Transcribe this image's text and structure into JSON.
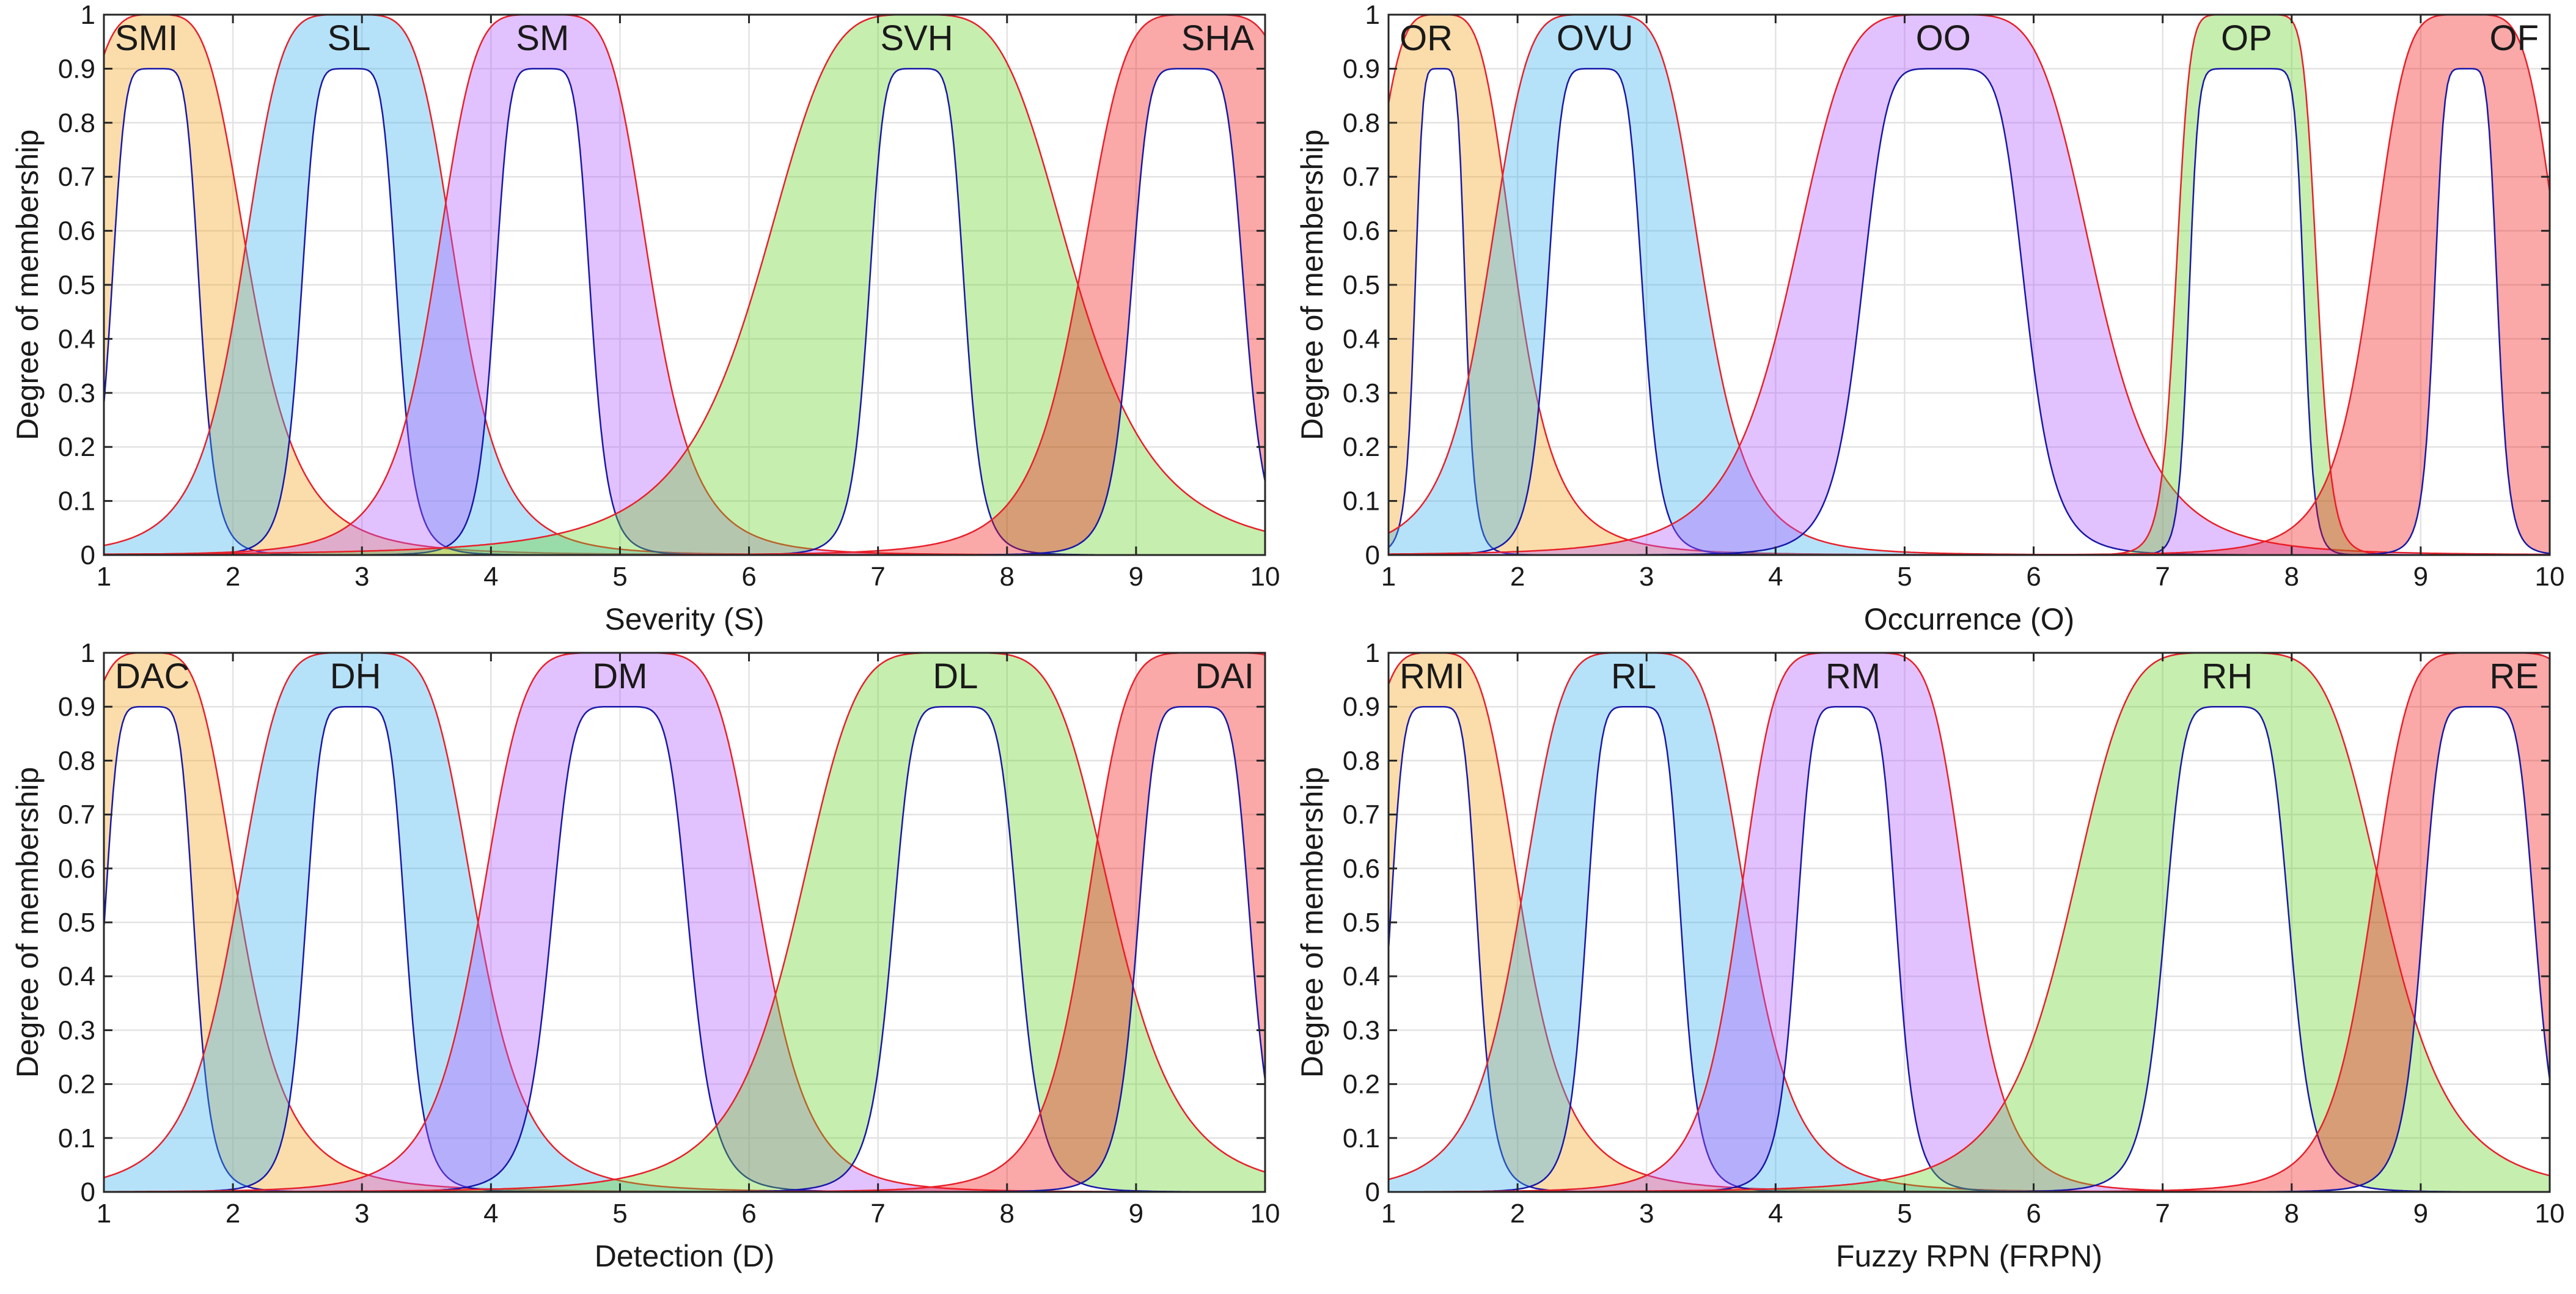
{
  "figure": {
    "ylabel": "Degree of membership",
    "colors": {
      "set1": "#f5a623",
      "set2": "#3fb3f0",
      "set3": "#b45cff",
      "set4": "#6ad12a",
      "set5": "#f21b1b",
      "upper_stroke": "#e8202a",
      "lower_stroke": "#1818a8",
      "grid": "#e3e3e3"
    }
  },
  "chart_data": [
    {
      "type": "area",
      "title": "",
      "xlabel": "Severity (S)",
      "ylabel": "Degree of membership",
      "xlim": [
        1,
        10
      ],
      "ylim": [
        0,
        1
      ],
      "xticks": [
        "1",
        "2",
        "3",
        "4",
        "5",
        "6",
        "7",
        "8",
        "9",
        "10"
      ],
      "yticks": [
        "0",
        "0.1",
        "0.2",
        "0.3",
        "0.4",
        "0.5",
        "0.6",
        "0.7",
        "0.8",
        "0.9",
        "1"
      ],
      "grid": true,
      "description_of_encoding": "Interval type-2 generalized bell membership functions; each set is a band between an upper MF (height 1) and a lower MF (height 0.9).",
      "series": [
        {
          "name": "SMI",
          "color": "#f5a623",
          "upper": {
            "a": 0.75,
            "b": 2,
            "c": 1.4,
            "h": 1.0
          },
          "lower": {
            "a": 0.35,
            "b": 3,
            "c": 1.4,
            "h": 0.9
          }
        },
        {
          "name": "SL",
          "color": "#3fb3f0",
          "upper": {
            "a": 0.85,
            "b": 2.5,
            "c": 2.9,
            "h": 1.0
          },
          "lower": {
            "a": 0.38,
            "b": 3,
            "c": 2.9,
            "h": 0.9
          }
        },
        {
          "name": "SM",
          "color": "#b45cff",
          "upper": {
            "a": 0.85,
            "b": 2.5,
            "c": 4.4,
            "h": 1.0
          },
          "lower": {
            "a": 0.38,
            "b": 3,
            "c": 4.4,
            "h": 0.9
          }
        },
        {
          "name": "SVH",
          "color": "#6ad12a",
          "upper": {
            "a": 1.25,
            "b": 2,
            "c": 7.3,
            "h": 1.0
          },
          "lower": {
            "a": 0.38,
            "b": 3,
            "c": 7.3,
            "h": 0.9
          }
        },
        {
          "name": "SHA",
          "color": "#f21b1b",
          "upper": {
            "a": 0.95,
            "b": 2.5,
            "c": 9.5,
            "h": 1.0
          },
          "lower": {
            "a": 0.45,
            "b": 3,
            "c": 9.4,
            "h": 0.9
          }
        }
      ]
    },
    {
      "type": "area",
      "title": "",
      "xlabel": "Occurrence (O)",
      "ylabel": "Degree of membership",
      "xlim": [
        1,
        10
      ],
      "ylim": [
        0,
        1
      ],
      "xticks": [
        "1",
        "2",
        "3",
        "4",
        "5",
        "6",
        "7",
        "8",
        "9",
        "10"
      ],
      "yticks": [
        "0",
        "0.1",
        "0.2",
        "0.3",
        "0.4",
        "0.5",
        "0.6",
        "0.7",
        "0.8",
        "0.9",
        "1"
      ],
      "grid": true,
      "series": [
        {
          "name": "OR",
          "color": "#f5a623",
          "upper": {
            "a": 0.6,
            "b": 2,
            "c": 1.4,
            "h": 1.0
          },
          "lower": {
            "a": 0.2,
            "b": 3,
            "c": 1.4,
            "h": 0.9
          }
        },
        {
          "name": "OVU",
          "color": "#3fb3f0",
          "upper": {
            "a": 0.85,
            "b": 2.5,
            "c": 2.6,
            "h": 1.0
          },
          "lower": {
            "a": 0.38,
            "b": 3,
            "c": 2.6,
            "h": 0.9
          }
        },
        {
          "name": "OO",
          "color": "#b45cff",
          "upper": {
            "a": 1.2,
            "b": 2.5,
            "c": 5.3,
            "h": 1.0
          },
          "lower": {
            "a": 0.65,
            "b": 3,
            "c": 5.3,
            "h": 0.9
          }
        },
        {
          "name": "OP",
          "color": "#6ad12a",
          "upper": {
            "a": 0.55,
            "b": 5,
            "c": 7.65,
            "h": 1.0
          },
          "lower": {
            "a": 0.45,
            "b": 6,
            "c": 7.65,
            "h": 0.9
          }
        },
        {
          "name": "OF",
          "color": "#f21b1b",
          "upper": {
            "a": 0.75,
            "b": 2.5,
            "c": 9.35,
            "h": 1.0
          },
          "lower": {
            "a": 0.25,
            "b": 3,
            "c": 9.35,
            "h": 0.9
          }
        }
      ]
    },
    {
      "type": "area",
      "title": "",
      "xlabel": "Detection (D)",
      "ylabel": "Degree of membership",
      "xlim": [
        1,
        10
      ],
      "ylim": [
        0,
        1
      ],
      "xticks": [
        "1",
        "2",
        "3",
        "4",
        "5",
        "6",
        "7",
        "8",
        "9",
        "10"
      ],
      "yticks": [
        "0",
        "0.1",
        "0.2",
        "0.3",
        "0.4",
        "0.5",
        "0.6",
        "0.7",
        "0.8",
        "0.9",
        "1"
      ],
      "grid": true,
      "series": [
        {
          "name": "DAC",
          "color": "#f5a623",
          "upper": {
            "a": 0.72,
            "b": 2,
            "c": 1.35,
            "h": 1.0
          },
          "lower": {
            "a": 0.36,
            "b": 3,
            "c": 1.35,
            "h": 0.9
          }
        },
        {
          "name": "DH",
          "color": "#3fb3f0",
          "upper": {
            "a": 0.95,
            "b": 2.5,
            "c": 2.95,
            "h": 1.0
          },
          "lower": {
            "a": 0.4,
            "b": 3,
            "c": 2.95,
            "h": 0.9
          }
        },
        {
          "name": "DM",
          "color": "#b45cff",
          "upper": {
            "a": 1.1,
            "b": 3,
            "c": 5.0,
            "h": 1.0
          },
          "lower": {
            "a": 0.55,
            "b": 3,
            "c": 5.0,
            "h": 0.9
          }
        },
        {
          "name": "DL",
          "color": "#6ad12a",
          "upper": {
            "a": 1.25,
            "b": 2.5,
            "c": 7.6,
            "h": 1.0
          },
          "lower": {
            "a": 0.5,
            "b": 3,
            "c": 7.6,
            "h": 0.9
          }
        },
        {
          "name": "DAI",
          "color": "#f21b1b",
          "upper": {
            "a": 1.0,
            "b": 3,
            "c": 9.6,
            "h": 1.0
          },
          "lower": {
            "a": 0.45,
            "b": 3,
            "c": 9.45,
            "h": 0.9
          }
        }
      ]
    },
    {
      "type": "area",
      "title": "",
      "xlabel": "Fuzzy RPN (FRPN)",
      "ylabel": "Degree of membership",
      "xlim": [
        1,
        10
      ],
      "ylim": [
        0,
        1
      ],
      "xticks": [
        "1",
        "2",
        "3",
        "4",
        "5",
        "6",
        "7",
        "8",
        "9",
        "10"
      ],
      "yticks": [
        "0",
        "0.1",
        "0.2",
        "0.3",
        "0.4",
        "0.5",
        "0.6",
        "0.7",
        "0.8",
        "0.9",
        "1"
      ],
      "grid": true,
      "series": [
        {
          "name": "RMI",
          "color": "#f5a623",
          "upper": {
            "a": 0.7,
            "b": 2,
            "c": 1.35,
            "h": 1.0
          },
          "lower": {
            "a": 0.35,
            "b": 3,
            "c": 1.35,
            "h": 0.9
          }
        },
        {
          "name": "RL",
          "color": "#3fb3f0",
          "upper": {
            "a": 0.9,
            "b": 2.5,
            "c": 2.9,
            "h": 1.0
          },
          "lower": {
            "a": 0.38,
            "b": 3,
            "c": 2.9,
            "h": 0.9
          }
        },
        {
          "name": "RM",
          "color": "#b45cff",
          "upper": {
            "a": 0.9,
            "b": 3,
            "c": 4.6,
            "h": 1.0
          },
          "lower": {
            "a": 0.4,
            "b": 3,
            "c": 4.55,
            "h": 0.9
          }
        },
        {
          "name": "RH",
          "color": "#6ad12a",
          "upper": {
            "a": 1.25,
            "b": 2.5,
            "c": 7.5,
            "h": 1.0
          },
          "lower": {
            "a": 0.5,
            "b": 3,
            "c": 7.5,
            "h": 0.9
          }
        },
        {
          "name": "RE",
          "color": "#f21b1b",
          "upper": {
            "a": 0.95,
            "b": 3,
            "c": 9.55,
            "h": 1.0
          },
          "lower": {
            "a": 0.45,
            "b": 3,
            "c": 9.45,
            "h": 0.9
          }
        }
      ]
    }
  ]
}
